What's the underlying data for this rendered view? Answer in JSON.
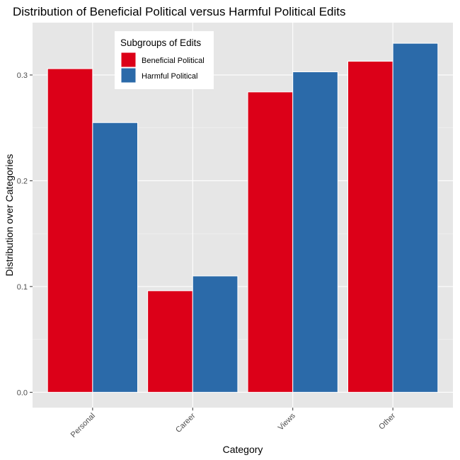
{
  "chart_data": {
    "type": "bar",
    "title": "Distribution of Beneficial Political versus Harmful Political Edits",
    "xlabel": "Category",
    "ylabel": "Distribution over Categories",
    "categories": [
      "Personal",
      "Career",
      "Views",
      "Other"
    ],
    "series": [
      {
        "name": "Beneficial Political",
        "color": "#dc0018",
        "values": [
          0.306,
          0.096,
          0.284,
          0.313
        ]
      },
      {
        "name": "Harmful Political",
        "color": "#2b6aa9",
        "values": [
          0.255,
          0.11,
          0.303,
          0.33
        ]
      }
    ],
    "ylim": [
      -0.0145,
      0.3495
    ],
    "yticks": [
      0.0,
      0.1,
      0.2,
      0.3
    ],
    "ytick_labels": [
      "0.0",
      "0.1",
      "0.2",
      "0.3"
    ],
    "grid": true,
    "legend": {
      "title": "Subgroups of Edits",
      "position": "top-left-inside"
    },
    "background": "#e6e6e6"
  }
}
